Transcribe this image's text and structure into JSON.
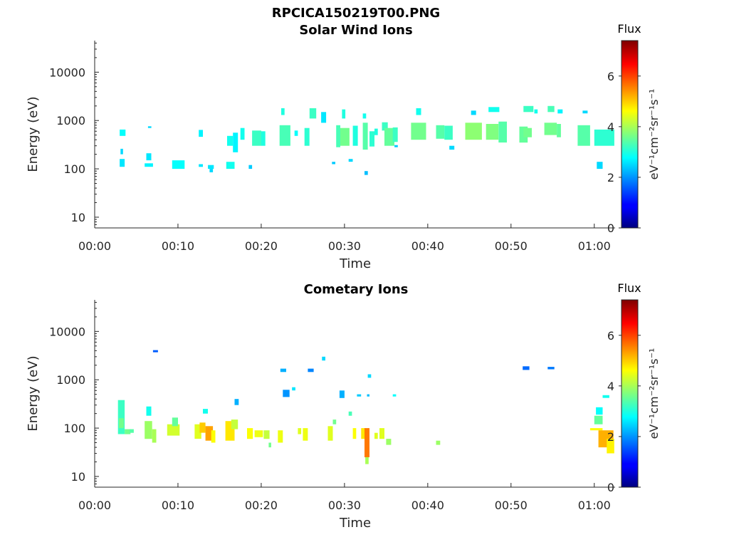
{
  "figure": {
    "title": "RPCICA150219T00.PNG"
  },
  "colorbar": {
    "title": "Flux",
    "label": "eV⁻¹cm⁻²sr⁻¹s⁻¹",
    "range": [
      0,
      7.4
    ],
    "ticks": [
      "0",
      "2",
      "4",
      "6"
    ],
    "tick_values": [
      0,
      2,
      4,
      6
    ],
    "colormap": "jet"
  },
  "chart_data": [
    {
      "type": "heatmap",
      "title": "Solar Wind Ions",
      "xlabel": "Time",
      "ylabel": "Energy (eV)",
      "xlim_minutes": [
        0,
        62.5
      ],
      "ylim": [
        6,
        45000
      ],
      "yscale": "log",
      "x_ticks": [
        "00:00",
        "00:10",
        "00:20",
        "00:30",
        "00:40",
        "00:50",
        "01:00"
      ],
      "x_tick_minutes": [
        0,
        10,
        20,
        30,
        40,
        50,
        60
      ],
      "y_ticks": [
        "10",
        "100",
        "1000",
        "10000"
      ],
      "y_tick_values": [
        10,
        100,
        1000,
        10000
      ],
      "cells": [
        [
          3.0,
          3.7,
          480,
          650,
          2.8
        ],
        [
          3.0,
          3.6,
          110,
          160,
          2.6
        ],
        [
          3.1,
          3.4,
          200,
          260,
          2.5
        ],
        [
          6.0,
          7.0,
          110,
          130,
          2.7
        ],
        [
          6.2,
          6.8,
          150,
          210,
          2.6
        ],
        [
          6.4,
          6.8,
          700,
          760,
          2.5
        ],
        [
          9.3,
          10.8,
          100,
          150,
          2.8
        ],
        [
          12.5,
          13.0,
          460,
          640,
          2.7
        ],
        [
          12.5,
          13.0,
          110,
          125,
          2.6
        ],
        [
          13.8,
          14.2,
          85,
          100,
          2.5
        ],
        [
          13.6,
          14.3,
          100,
          120,
          2.6
        ],
        [
          15.8,
          16.8,
          100,
          140,
          2.9
        ],
        [
          15.9,
          16.6,
          300,
          480,
          2.9
        ],
        [
          16.6,
          17.2,
          220,
          560,
          2.7
        ],
        [
          17.5,
          18.0,
          400,
          700,
          2.9
        ],
        [
          18.5,
          18.9,
          100,
          120,
          2.4
        ],
        [
          18.9,
          20.0,
          300,
          620,
          3.2
        ],
        [
          20.0,
          20.5,
          300,
          600,
          3.0
        ],
        [
          22.2,
          23.5,
          300,
          800,
          3.3
        ],
        [
          22.4,
          22.8,
          1300,
          1800,
          3.0
        ],
        [
          24.0,
          24.4,
          480,
          620,
          2.8
        ],
        [
          25.2,
          25.8,
          300,
          700,
          3.1
        ],
        [
          25.8,
          26.6,
          1100,
          1800,
          3.2
        ],
        [
          27.2,
          27.8,
          900,
          1500,
          2.6
        ],
        [
          28.5,
          28.9,
          125,
          140,
          2.4
        ],
        [
          29.0,
          29.5,
          280,
          800,
          3.3
        ],
        [
          29.5,
          30.6,
          300,
          700,
          3.6
        ],
        [
          29.7,
          30.1,
          1100,
          1700,
          3.0
        ],
        [
          30.5,
          31.0,
          140,
          160,
          2.5
        ],
        [
          31.0,
          31.6,
          300,
          780,
          3.0
        ],
        [
          32.2,
          32.8,
          250,
          900,
          3.4
        ],
        [
          32.2,
          32.6,
          1100,
          1400,
          2.9
        ],
        [
          32.4,
          32.8,
          75,
          90,
          2.3
        ],
        [
          33.0,
          33.6,
          290,
          600,
          3.1
        ],
        [
          33.6,
          34.0,
          500,
          680,
          3.0
        ],
        [
          34.5,
          35.2,
          620,
          920,
          3.2
        ],
        [
          34.8,
          36.0,
          300,
          700,
          3.5
        ],
        [
          35.8,
          36.4,
          360,
          720,
          3.2
        ],
        [
          36.0,
          36.4,
          280,
          310,
          2.4
        ],
        [
          38.0,
          39.8,
          400,
          900,
          3.6
        ],
        [
          38.6,
          39.2,
          1300,
          1800,
          2.9
        ],
        [
          41.0,
          42.0,
          420,
          800,
          3.4
        ],
        [
          42.0,
          43.0,
          400,
          780,
          3.2
        ],
        [
          42.6,
          43.2,
          250,
          300,
          2.5
        ],
        [
          44.5,
          46.5,
          400,
          900,
          3.8
        ],
        [
          45.2,
          45.8,
          1300,
          1600,
          2.5
        ],
        [
          47.0,
          48.5,
          400,
          850,
          3.7
        ],
        [
          47.3,
          48.6,
          1500,
          1900,
          2.9
        ],
        [
          48.5,
          49.5,
          350,
          950,
          3.4
        ],
        [
          51.0,
          52.0,
          350,
          750,
          3.5
        ],
        [
          51.5,
          52.5,
          450,
          700,
          3.6
        ],
        [
          51.5,
          52.7,
          1500,
          2000,
          3.2
        ],
        [
          52.8,
          53.2,
          1400,
          1700,
          2.9
        ],
        [
          54.0,
          55.5,
          500,
          900,
          3.6
        ],
        [
          54.4,
          55.2,
          1500,
          2000,
          3.3
        ],
        [
          55.5,
          56.0,
          450,
          850,
          3.5
        ],
        [
          55.6,
          56.2,
          1400,
          1700,
          2.7
        ],
        [
          58.0,
          59.5,
          300,
          800,
          3.4
        ],
        [
          58.6,
          59.2,
          1400,
          1600,
          2.5
        ],
        [
          60.0,
          62.4,
          300,
          650,
          3.1
        ],
        [
          60.3,
          61.0,
          100,
          140,
          2.5
        ]
      ]
    },
    {
      "type": "heatmap",
      "title": "Cometary Ions",
      "xlabel": "Time",
      "ylabel": "Energy (eV)",
      "xlim_minutes": [
        0,
        62.5
      ],
      "ylim": [
        6,
        45000
      ],
      "yscale": "log",
      "x_ticks": [
        "00:00",
        "00:10",
        "00:20",
        "00:30",
        "00:40",
        "00:50",
        "01:00"
      ],
      "x_tick_minutes": [
        0,
        10,
        20,
        30,
        40,
        50,
        60
      ],
      "y_ticks": [
        "10",
        "100",
        "1000",
        "10000"
      ],
      "y_tick_values": [
        10,
        100,
        1000,
        10000
      ],
      "cells": [
        [
          2.8,
          3.6,
          75,
          380,
          3.2
        ],
        [
          2.9,
          3.5,
          100,
          160,
          3.6
        ],
        [
          3.6,
          4.3,
          75,
          95,
          3.6
        ],
        [
          4.2,
          4.7,
          80,
          95,
          3.4
        ],
        [
          6.0,
          6.9,
          60,
          140,
          3.9
        ],
        [
          6.2,
          6.8,
          180,
          280,
          2.9
        ],
        [
          6.9,
          7.4,
          50,
          95,
          4.0
        ],
        [
          7.0,
          7.6,
          3700,
          4100,
          1.6
        ],
        [
          8.7,
          10.2,
          70,
          120,
          4.3
        ],
        [
          9.3,
          10.0,
          110,
          165,
          3.5
        ],
        [
          12.0,
          12.8,
          60,
          120,
          4.4
        ],
        [
          12.6,
          13.3,
          80,
          130,
          5.0
        ],
        [
          13.0,
          13.6,
          200,
          250,
          2.9
        ],
        [
          13.3,
          14.2,
          55,
          110,
          5.3
        ],
        [
          14.0,
          14.5,
          50,
          90,
          4.6
        ],
        [
          15.7,
          16.8,
          55,
          140,
          4.8
        ],
        [
          16.8,
          17.3,
          300,
          400,
          2.2
        ],
        [
          16.4,
          17.2,
          95,
          150,
          4.2
        ],
        [
          18.3,
          19.0,
          60,
          100,
          4.6
        ],
        [
          19.2,
          20.2,
          65,
          90,
          4.5
        ],
        [
          20.3,
          21.0,
          60,
          90,
          4.2
        ],
        [
          20.9,
          21.2,
          40,
          50,
          3.6
        ],
        [
          22.0,
          22.6,
          50,
          90,
          4.5
        ],
        [
          22.3,
          23.0,
          1450,
          1700,
          2.2
        ],
        [
          22.6,
          23.4,
          440,
          620,
          2.0
        ],
        [
          23.7,
          24.1,
          600,
          700,
          2.6
        ],
        [
          24.4,
          24.8,
          75,
          100,
          4.4
        ],
        [
          25.0,
          25.6,
          55,
          100,
          4.5
        ],
        [
          25.6,
          26.3,
          1450,
          1700,
          1.9
        ],
        [
          27.3,
          27.7,
          2500,
          3000,
          2.5
        ],
        [
          28.0,
          28.6,
          55,
          110,
          4.4
        ],
        [
          28.6,
          29.0,
          120,
          150,
          3.6
        ],
        [
          29.4,
          30.0,
          420,
          600,
          2.2
        ],
        [
          30.5,
          30.9,
          180,
          220,
          3.3
        ],
        [
          31.0,
          31.4,
          60,
          100,
          4.6
        ],
        [
          31.5,
          32.0,
          450,
          500,
          2.4
        ],
        [
          32.0,
          32.5,
          60,
          100,
          4.8
        ],
        [
          32.4,
          33.0,
          25,
          100,
          5.6
        ],
        [
          32.5,
          32.9,
          18,
          25,
          4.0
        ],
        [
          32.7,
          33.0,
          450,
          500,
          2.3
        ],
        [
          32.8,
          33.2,
          1100,
          1300,
          2.5
        ],
        [
          33.6,
          34.0,
          60,
          80,
          4.4
        ],
        [
          34.2,
          34.8,
          60,
          100,
          4.4
        ],
        [
          35.0,
          35.6,
          45,
          60,
          3.9
        ],
        [
          35.8,
          36.2,
          450,
          500,
          2.8
        ],
        [
          41.0,
          41.5,
          45,
          55,
          3.9
        ],
        [
          51.4,
          52.2,
          1600,
          1900,
          1.7
        ],
        [
          54.4,
          55.2,
          1650,
          1850,
          1.8
        ],
        [
          59.5,
          61.0,
          90,
          100,
          4.6
        ],
        [
          60.0,
          61.0,
          120,
          180,
          3.5
        ],
        [
          60.2,
          61.0,
          190,
          270,
          2.8
        ],
        [
          61.0,
          61.8,
          420,
          480,
          2.9
        ],
        [
          60.5,
          62.3,
          40,
          90,
          5.2
        ],
        [
          61.5,
          62.4,
          30,
          60,
          4.7
        ]
      ]
    }
  ]
}
